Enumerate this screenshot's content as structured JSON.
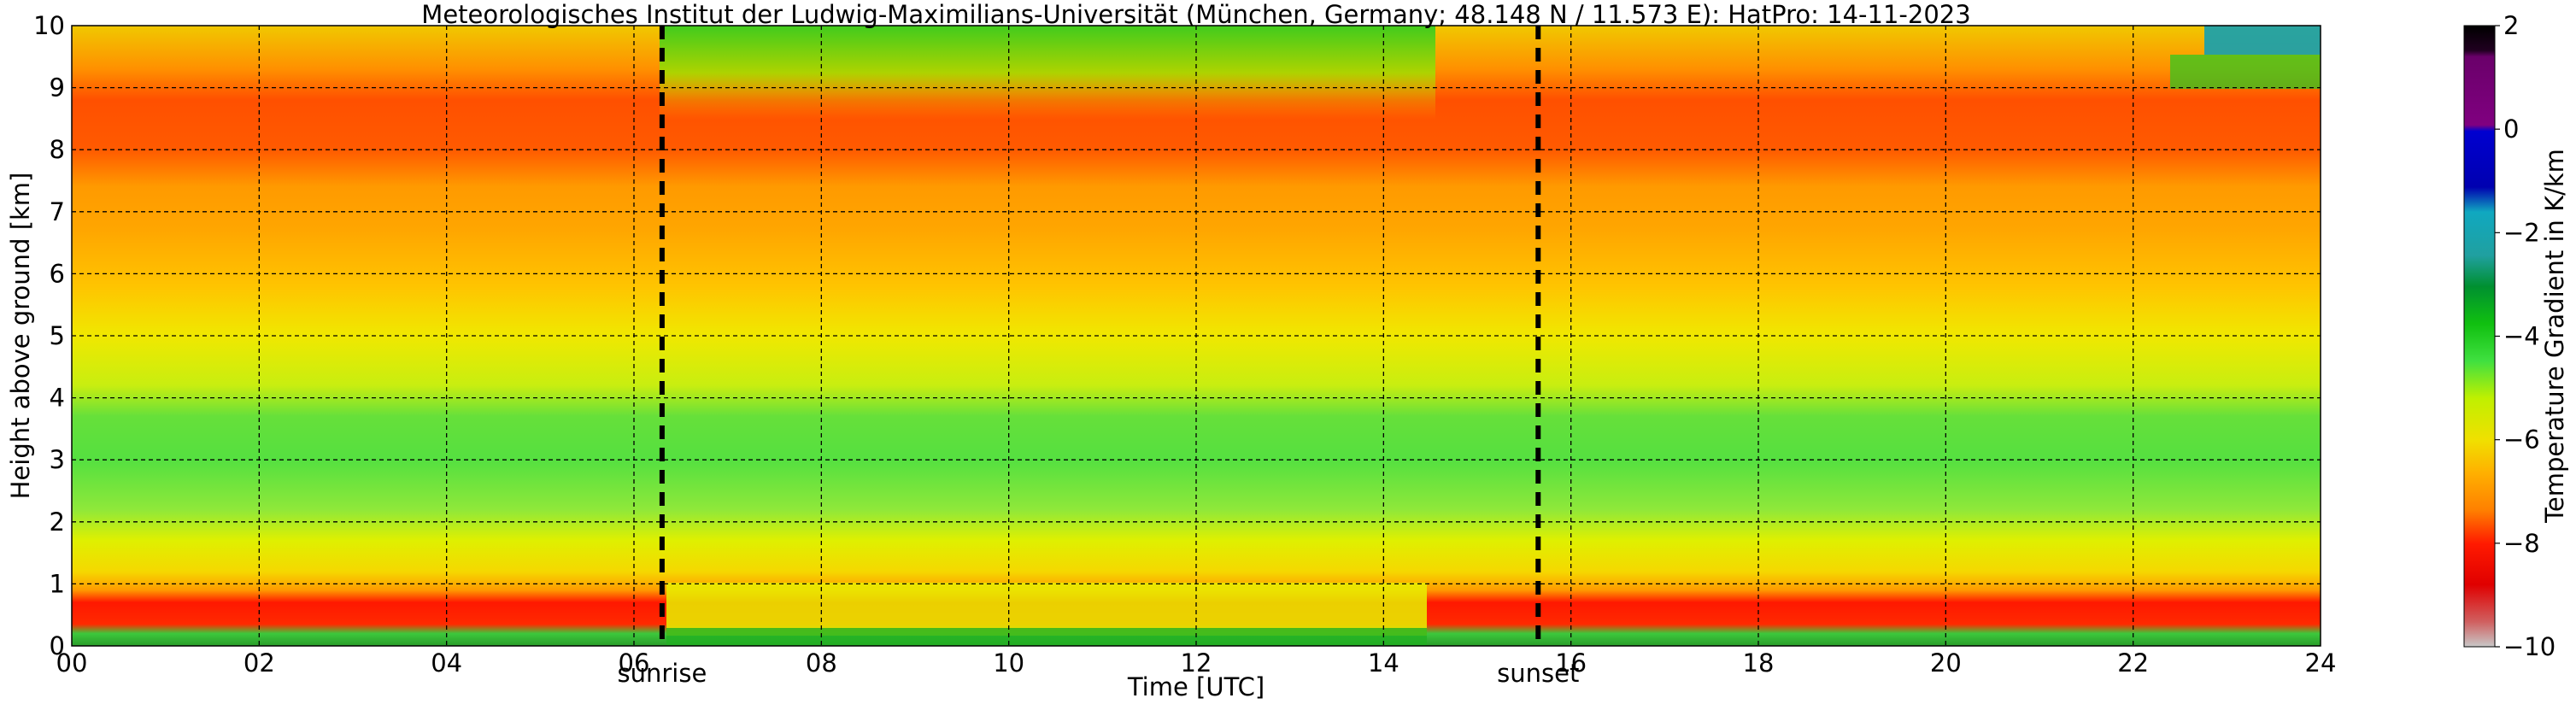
{
  "chart_data": {
    "type": "heatmap",
    "title": "Meteorologisches Institut der Ludwig-Maximilians-Universität (München, Germany; 48.148 N / 11.573 E):    HatPro: 14-11-2023",
    "xlabel": "Time [UTC]",
    "ylabel": "Height above ground [km]",
    "xlim": [
      0,
      24
    ],
    "ylim": [
      0,
      10
    ],
    "x_ticks": [
      "00",
      "02",
      "04",
      "06",
      "08",
      "10",
      "12",
      "14",
      "16",
      "18",
      "20",
      "22",
      "24"
    ],
    "y_ticks": [
      "0",
      "1",
      "2",
      "3",
      "4",
      "5",
      "6",
      "7",
      "8",
      "9",
      "10"
    ],
    "grid": true,
    "annotations": [
      {
        "label": "sunrise",
        "x": 6.3
      },
      {
        "label": "sunset",
        "x": 15.65
      }
    ],
    "colorbar": {
      "label": "Temperature Gradient in K/km",
      "range": [
        -10,
        2
      ],
      "ticks": [
        "2",
        "0",
        "−2",
        "−4",
        "−6",
        "−8",
        "−10"
      ]
    },
    "layers": [
      {
        "height_km": [
          0.0,
          0.2
        ],
        "gradient_K_per_km": -3.0
      },
      {
        "height_km": [
          0.2,
          0.9
        ],
        "gradient_K_per_km": -8.5
      },
      {
        "height_km": [
          0.9,
          2.0
        ],
        "gradient_K_per_km": -6.5
      },
      {
        "height_km": [
          2.0,
          4.0
        ],
        "gradient_K_per_km": -5.0
      },
      {
        "height_km": [
          4.0,
          6.0
        ],
        "gradient_K_per_km": -6.8
      },
      {
        "height_km": [
          6.0,
          7.5
        ],
        "gradient_K_per_km": -7.5
      },
      {
        "height_km": [
          7.5,
          9.3
        ],
        "gradient_K_per_km": -8.0
      },
      {
        "height_km": [
          9.3,
          10.0
        ],
        "gradient_K_per_km": -6.5
      }
    ]
  }
}
